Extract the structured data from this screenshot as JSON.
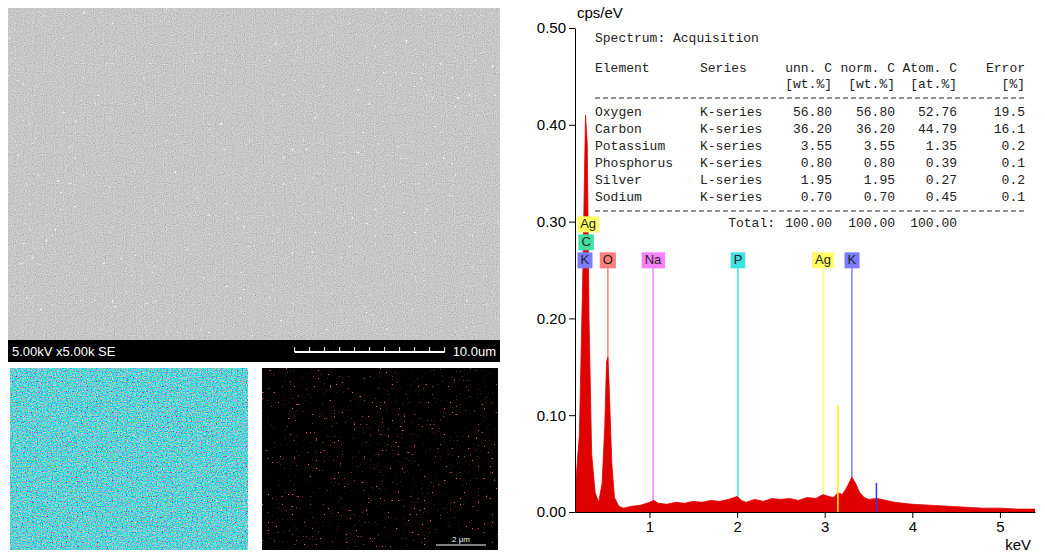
{
  "sem_image": {
    "info": "5.00kV x5.00k SE",
    "scale_bar": "10.0um"
  },
  "map_panel": {
    "scale_bar": "2 μm"
  },
  "spectrum_table": {
    "title": "Spectrum: Acquisition",
    "columns": [
      "Element",
      "Series",
      "unn. C",
      "norm. C",
      "Atom. C",
      "Error"
    ],
    "units": [
      "[wt.%]",
      "[wt.%]",
      "[at.%]",
      "[%]"
    ],
    "rows": [
      [
        "Oxygen",
        "K-series",
        "56.80",
        "56.80",
        "52.76",
        "19.5"
      ],
      [
        "Carbon",
        "K-series",
        "36.20",
        "36.20",
        "44.79",
        "16.1"
      ],
      [
        "Potassium",
        "K-series",
        "3.55",
        "3.55",
        "1.35",
        "0.2"
      ],
      [
        "Phosphorus",
        "K-series",
        "0.80",
        "0.80",
        "0.39",
        "0.1"
      ],
      [
        "Silver",
        "L-series",
        "1.95",
        "1.95",
        "0.27",
        "0.2"
      ],
      [
        "Sodium",
        "K-series",
        "0.70",
        "0.70",
        "0.45",
        "0.1"
      ]
    ],
    "total": {
      "label": "Total:",
      "values": [
        "100.00",
        "100.00",
        "100.00"
      ]
    }
  },
  "chart_data": {
    "type": "area",
    "y_label": "cps/eV",
    "x_label": "keV",
    "color": "#e00000",
    "grid": false,
    "xlim": [
      0.15,
      5.4
    ],
    "ylim": [
      0,
      0.5
    ],
    "xticks": [
      1,
      2,
      3,
      4,
      5
    ],
    "yticks": [
      {
        "value": 0,
        "label": "0.00"
      },
      {
        "value": 0.1,
        "label": "0.10"
      },
      {
        "value": 0.2,
        "label": "0.20"
      },
      {
        "value": 0.3,
        "label": "0.30"
      },
      {
        "value": 0.4,
        "label": "0.40"
      },
      {
        "value": 0.5,
        "label": "0.50"
      }
    ],
    "x": [
      0.15,
      0.2,
      0.24,
      0.27,
      0.29,
      0.31,
      0.34,
      0.38,
      0.42,
      0.46,
      0.49,
      0.51,
      0.525,
      0.54,
      0.57,
      0.6,
      0.65,
      0.7,
      0.8,
      0.9,
      1.0,
      1.05,
      1.1,
      1.2,
      1.3,
      1.4,
      1.5,
      1.6,
      1.7,
      1.8,
      1.9,
      2.0,
      2.05,
      2.1,
      2.2,
      2.3,
      2.4,
      2.5,
      2.6,
      2.7,
      2.8,
      2.9,
      2.98,
      3.05,
      3.1,
      3.15,
      3.2,
      3.25,
      3.31,
      3.35,
      3.4,
      3.45,
      3.5,
      3.6,
      3.7,
      3.8,
      3.9,
      4.0,
      4.2,
      4.4,
      4.6,
      4.8,
      5.0,
      5.2,
      5.4
    ],
    "values": [
      0.02,
      0.08,
      0.25,
      0.41,
      0.38,
      0.2,
      0.06,
      0.02,
      0.01,
      0.03,
      0.09,
      0.155,
      0.16,
      0.13,
      0.05,
      0.015,
      0.006,
      0.004,
      0.006,
      0.007,
      0.01,
      0.012,
      0.009,
      0.008,
      0.01,
      0.009,
      0.011,
      0.01,
      0.012,
      0.011,
      0.013,
      0.016,
      0.012,
      0.01,
      0.013,
      0.011,
      0.014,
      0.013,
      0.014,
      0.012,
      0.015,
      0.014,
      0.018,
      0.016,
      0.015,
      0.02,
      0.018,
      0.025,
      0.036,
      0.03,
      0.02,
      0.015,
      0.013,
      0.014,
      0.012,
      0.01,
      0.009,
      0.008,
      0.007,
      0.006,
      0.005,
      0.004,
      0.004,
      0.003,
      0.003
    ],
    "element_labels": [
      {
        "name": "K",
        "x": 0.262,
        "color": "#7b7bff"
      },
      {
        "name": "C",
        "x": 0.277,
        "color": "#3fe0a0"
      },
      {
        "name": "Ag",
        "x": 0.3,
        "color": "#ffff66"
      },
      {
        "name": "O",
        "x": 0.525,
        "color": "#ff7f7f"
      },
      {
        "name": "Na",
        "x": 1.04,
        "color": "#ff80ff"
      },
      {
        "name": "P",
        "x": 2.01,
        "color": "#3fe0e0"
      },
      {
        "name": "Ag",
        "x": 2.98,
        "color": "#ffff66"
      },
      {
        "name": "K",
        "x": 3.31,
        "color": "#7b7bff"
      }
    ],
    "peak_lines": [
      {
        "x": 3.15,
        "height": 0.11,
        "color": "#ffee00"
      },
      {
        "x": 3.59,
        "height": 0.03,
        "color": "#3333ff"
      }
    ]
  }
}
